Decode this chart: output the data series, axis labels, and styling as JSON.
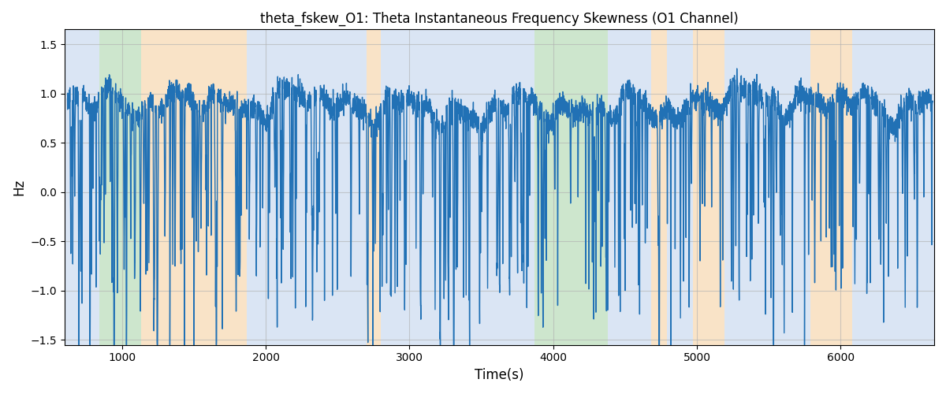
{
  "title": "theta_fskew_O1: Theta Instantaneous Frequency Skewness (O1 Channel)",
  "xlabel": "Time(s)",
  "ylabel": "Hz",
  "ylim": [
    -1.55,
    1.65
  ],
  "xlim": [
    600,
    6650
  ],
  "line_color": "#2171b5",
  "line_width": 1.0,
  "bg_regions": [
    {
      "xmin": 600,
      "xmax": 840,
      "color": "#aec6e8",
      "alpha": 0.45
    },
    {
      "xmin": 840,
      "xmax": 1130,
      "color": "#90c990",
      "alpha": 0.45
    },
    {
      "xmin": 1130,
      "xmax": 1870,
      "color": "#f5c890",
      "alpha": 0.5
    },
    {
      "xmin": 1870,
      "xmax": 2700,
      "color": "#aec6e8",
      "alpha": 0.45
    },
    {
      "xmin": 2700,
      "xmax": 2800,
      "color": "#f5c890",
      "alpha": 0.5
    },
    {
      "xmin": 2800,
      "xmax": 3760,
      "color": "#aec6e8",
      "alpha": 0.45
    },
    {
      "xmin": 3760,
      "xmax": 3870,
      "color": "#aec6e8",
      "alpha": 0.45
    },
    {
      "xmin": 3870,
      "xmax": 4000,
      "color": "#90c990",
      "alpha": 0.45
    },
    {
      "xmin": 4000,
      "xmax": 4380,
      "color": "#90c990",
      "alpha": 0.45
    },
    {
      "xmin": 4380,
      "xmax": 4680,
      "color": "#aec6e8",
      "alpha": 0.45
    },
    {
      "xmin": 4680,
      "xmax": 4790,
      "color": "#f5c890",
      "alpha": 0.5
    },
    {
      "xmin": 4790,
      "xmax": 4970,
      "color": "#aec6e8",
      "alpha": 0.45
    },
    {
      "xmin": 4970,
      "xmax": 5190,
      "color": "#f5c890",
      "alpha": 0.5
    },
    {
      "xmin": 5190,
      "xmax": 5790,
      "color": "#aec6e8",
      "alpha": 0.45
    },
    {
      "xmin": 5790,
      "xmax": 6080,
      "color": "#f5c890",
      "alpha": 0.5
    },
    {
      "xmin": 6080,
      "xmax": 6650,
      "color": "#aec6e8",
      "alpha": 0.45
    }
  ],
  "grid_color": "#b0b0b0",
  "grid_alpha": 0.6,
  "yticks": [
    -1.5,
    -1.0,
    -0.5,
    0.0,
    0.5,
    1.0,
    1.5
  ],
  "xticks": [
    1000,
    2000,
    3000,
    4000,
    5000,
    6000
  ],
  "n_points": 6000,
  "x_start": 620,
  "x_end": 6640
}
